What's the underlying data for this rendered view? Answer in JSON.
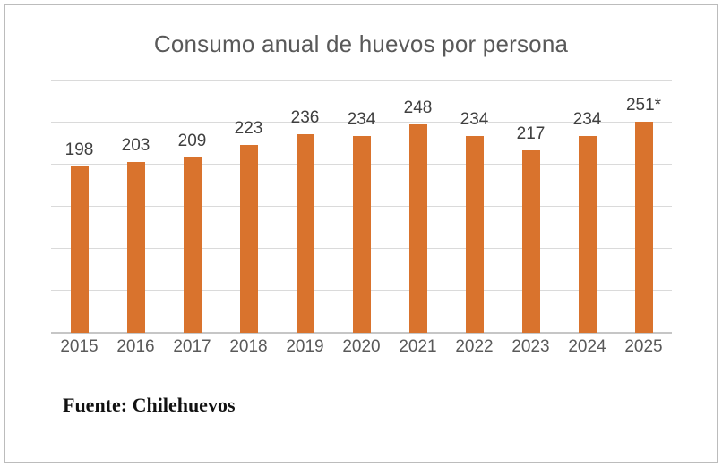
{
  "title": "Consumo anual de huevos por persona",
  "source": "Fuente: Chilehuevos",
  "colors": {
    "bar": "#d9732d",
    "title_text": "#595959",
    "value_label_text": "#3f3f3f",
    "axis_label_text": "#595959",
    "gridline": "#dadada",
    "axis_line": "#c6c6c6",
    "frame_border": "#bcbcbc",
    "background": "#ffffff"
  },
  "chart_data": {
    "type": "bar",
    "title": "Consumo anual de huevos por persona",
    "categories": [
      "2015",
      "2016",
      "2017",
      "2018",
      "2019",
      "2020",
      "2021",
      "2022",
      "2023",
      "2024",
      "2025"
    ],
    "values": [
      198,
      203,
      209,
      223,
      236,
      234,
      248,
      234,
      217,
      234,
      251
    ],
    "value_labels": [
      "198",
      "203",
      "209",
      "223",
      "236",
      "234",
      "248",
      "234",
      "217",
      "234",
      "251*"
    ],
    "xlabel": "",
    "ylabel": "",
    "ylim": [
      0,
      300
    ],
    "grid_step": 50,
    "grid": true,
    "y_tick_labels_visible": false,
    "legend_position": "none",
    "source": "Fuente: Chilehuevos"
  }
}
